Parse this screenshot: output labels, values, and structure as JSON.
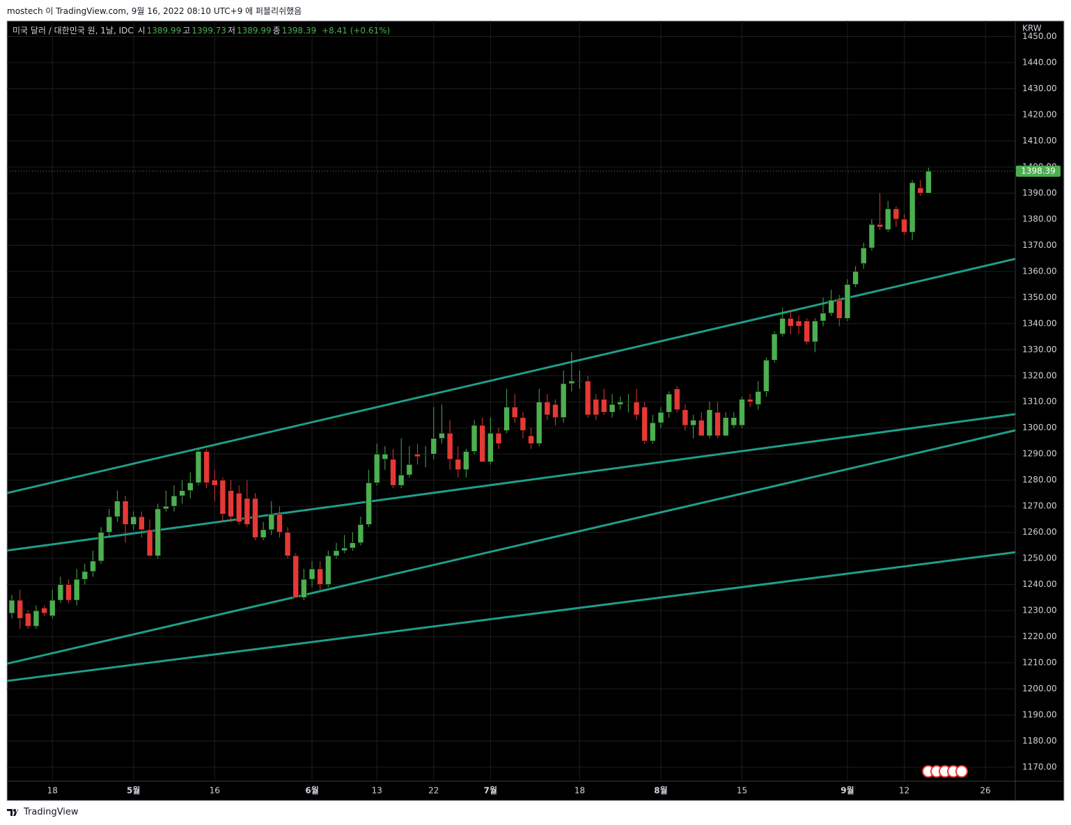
{
  "header": {
    "published": "mostech 이 TradingView.com, 9월 16, 2022 08:10 UTC+9 에 퍼블리쉬했음",
    "symbol": "미국 달러 / 대한민국 원, 1날, IDC",
    "ohlc": [
      {
        "label": "시",
        "value": "1389.99"
      },
      {
        "label": "고",
        "value": "1399.73"
      },
      {
        "label": "저",
        "value": "1389.99"
      },
      {
        "label": "종",
        "value": "1398.39"
      }
    ],
    "change": "+8.41 (+0.61%)"
  },
  "chart_data": {
    "type": "candlestick",
    "currency": "KRW",
    "up_color": "#4caf50",
    "down_color": "#e53935",
    "grid": true,
    "categories": [
      null,
      null,
      null,
      null,
      null,
      "18",
      null,
      null,
      null,
      null,
      null,
      null,
      null,
      null,
      null,
      "5월",
      null,
      null,
      null,
      null,
      null,
      null,
      null,
      null,
      null,
      "16",
      null,
      null,
      null,
      null,
      null,
      null,
      null,
      null,
      null,
      null,
      null,
      "6월",
      null,
      null,
      null,
      null,
      null,
      null,
      null,
      "13",
      null,
      null,
      null,
      null,
      null,
      null,
      "22",
      null,
      null,
      null,
      null,
      null,
      null,
      "7월",
      null,
      null,
      null,
      null,
      null,
      null,
      null,
      null,
      null,
      null,
      "18",
      null,
      null,
      null,
      null,
      null,
      null,
      null,
      null,
      null,
      "8월",
      null,
      null,
      null,
      null,
      null,
      null,
      null,
      null,
      null,
      "15",
      null,
      null,
      null,
      null,
      null,
      null,
      null,
      null,
      null,
      null,
      null,
      null,
      "9월",
      null,
      null,
      null,
      null,
      null,
      null,
      "12",
      null,
      null,
      null,
      null,
      null,
      null,
      null,
      null,
      null,
      "26",
      null,
      null,
      null
    ],
    "open": [
      1229,
      1234,
      1229,
      1224,
      1231,
      1228,
      1234,
      1240,
      1234,
      1242,
      1245,
      1249,
      1260,
      1266,
      1272,
      1263,
      1266,
      1261,
      1251,
      1269,
      1270,
      1274,
      1276,
      1279,
      1291,
      1280,
      1280,
      1276,
      1275,
      1273,
      1273,
      1258,
      1261,
      1267,
      1260,
      1251,
      1235,
      1242,
      1246,
      1240,
      1251,
      1253,
      1254,
      1256,
      1263,
      1279,
      1288,
      1288,
      1278,
      1282,
      1290,
      1290,
      1290,
      1296,
      1298,
      1288,
      1284,
      1291,
      1301,
      1287,
      1298,
      1299,
      1308,
      1304,
      1297,
      1294,
      1310,
      1309,
      1304,
      1317,
      1318,
      1318,
      1311,
      1311,
      1306,
      1309,
      1310,
      1310,
      1308,
      1295,
      1302,
      1306,
      1315,
      1307,
      1301,
      1303,
      1297,
      1306,
      1297,
      1301,
      1301,
      1311,
      1309,
      1314,
      1326,
      1336,
      1342,
      1341,
      1341,
      1333,
      1341,
      1344,
      1349,
      1342,
      1355,
      1363,
      1369,
      1378,
      1376,
      1384,
      1380,
      1375,
      1392,
      1389.99,
      null,
      null,
      null,
      null,
      null,
      null,
      null,
      null,
      null,
      null
    ],
    "high": [
      1236,
      1238,
      1230,
      1232,
      1232,
      1238,
      1243,
      1242,
      1246,
      1248,
      1253,
      1262,
      1269,
      1276,
      1274,
      1268,
      1268,
      1265,
      1271,
      1276,
      1278,
      1280,
      1283,
      1292,
      1292,
      1284,
      1281,
      1280,
      1278,
      1280,
      1275,
      1264,
      1272,
      1270,
      1262,
      1252,
      1246,
      1249,
      1249,
      1253,
      1256,
      1259,
      1260,
      1266,
      1284,
      1294,
      1293,
      1292,
      1296,
      1293,
      1294,
      1293,
      1308,
      1309,
      1303,
      1293,
      1292,
      1303,
      1304,
      1304,
      1300,
      1315,
      1313,
      1306,
      1300,
      1315,
      1313,
      1311,
      1322,
      1329,
      1322,
      1320,
      1313,
      1315,
      1313,
      1312,
      1313,
      1315,
      1310,
      1305,
      1308,
      1314,
      1316,
      1309,
      1305,
      1306,
      1310,
      1310,
      1306,
      1306,
      1312,
      1313,
      1318,
      1327,
      1337,
      1346,
      1345,
      1343,
      1342,
      1342,
      1350,
      1353,
      1351,
      1357,
      1362,
      1371,
      1380,
      1390,
      1387,
      1385,
      1382,
      1395,
      1395,
      1399.73,
      null,
      null,
      null,
      null,
      null,
      null,
      null,
      null,
      null,
      null
    ],
    "low": [
      1227,
      1223,
      1223,
      1223,
      1228,
      1227,
      1233,
      1233,
      1232,
      1240,
      1243,
      1248,
      1258,
      1264,
      1256,
      1261,
      1258,
      1251,
      1250,
      1268,
      1268,
      1271,
      1273,
      1278,
      1277,
      1272,
      1264,
      1264,
      1263,
      1262,
      1257,
      1257,
      1259,
      1258,
      1250,
      1235,
      1234,
      1239,
      1238,
      1239,
      1250,
      1252,
      1253,
      1255,
      1262,
      1278,
      1284,
      1277,
      1277,
      1281,
      1286,
      1285,
      1288,
      1294,
      1284,
      1281,
      1281,
      1290,
      1287,
      1286,
      1292,
      1298,
      1302,
      1296,
      1292,
      1293,
      1303,
      1301,
      1302,
      1314,
      1315,
      1304,
      1303,
      1305,
      1304,
      1307,
      1306,
      1303,
      1294,
      1294,
      1300,
      1304,
      1306,
      1299,
      1296,
      1297,
      1296,
      1296,
      1297,
      1300,
      1300,
      1308,
      1307,
      1312,
      1325,
      1335,
      1336,
      1336,
      1332,
      1329,
      1339,
      1343,
      1339,
      1341,
      1354,
      1361,
      1368,
      1376,
      1375,
      1377,
      1374,
      1372,
      1389,
      1389.99,
      null,
      null,
      null,
      null,
      null,
      null,
      null,
      null,
      null,
      null
    ],
    "close": [
      1234,
      1227,
      1224,
      1230,
      1229,
      1234,
      1240,
      1234,
      1242,
      1245,
      1249,
      1260,
      1266,
      1272,
      1263,
      1266,
      1261,
      1251,
      1269,
      1270,
      1274,
      1276,
      1279,
      1291,
      1279,
      1278,
      1267,
      1266,
      1264,
      1263,
      1258,
      1261,
      1267,
      1260,
      1251,
      1235,
      1242,
      1246,
      1240,
      1251,
      1253,
      1254,
      1256,
      1263,
      1279,
      1290,
      1290,
      1278,
      1282,
      1286,
      1289,
      1290,
      1296,
      1298,
      1288,
      1284,
      1291,
      1301,
      1287,
      1298,
      1294,
      1308,
      1304,
      1299,
      1294,
      1310,
      1305,
      1304,
      1317,
      1318,
      1318,
      1305,
      1305,
      1306,
      1309,
      1310,
      1310,
      1305,
      1295,
      1302,
      1306,
      1313,
      1307,
      1301,
      1303,
      1297,
      1307,
      1297,
      1304,
      1304,
      1311,
      1310,
      1314,
      1326,
      1336,
      1342,
      1339,
      1339,
      1333,
      1341,
      1344,
      1349,
      1342,
      1355,
      1360,
      1369,
      1378,
      1377,
      1384,
      1380,
      1375,
      1394,
      1390,
      1398.39,
      null,
      null,
      null,
      null,
      null,
      null,
      null,
      null,
      null,
      null
    ],
    "ylim": [
      1164.66,
      1456.0
    ],
    "yticks": [
      {
        "value": 1170,
        "label": "1170.00"
      },
      {
        "value": 1180,
        "label": "1180.00"
      },
      {
        "value": 1190,
        "label": "1190.00"
      },
      {
        "value": 1200,
        "label": "1200.00"
      },
      {
        "value": 1210,
        "label": "1210.00"
      },
      {
        "value": 1220,
        "label": "1220.00"
      },
      {
        "value": 1230,
        "label": "1230.00"
      },
      {
        "value": 1240,
        "label": "1240.00"
      },
      {
        "value": 1250,
        "label": "1250.00"
      },
      {
        "value": 1260,
        "label": "1260.00"
      },
      {
        "value": 1270,
        "label": "1270.00"
      },
      {
        "value": 1280,
        "label": "1280.00"
      },
      {
        "value": 1290,
        "label": "1290.00"
      },
      {
        "value": 1300,
        "label": "1300.00"
      },
      {
        "value": 1310,
        "label": "1310.00"
      },
      {
        "value": 1320,
        "label": "1320.00"
      },
      {
        "value": 1330,
        "label": "1330.00"
      },
      {
        "value": 1340,
        "label": "1340.00"
      },
      {
        "value": 1350,
        "label": "1350.00"
      },
      {
        "value": 1360,
        "label": "1360.00"
      },
      {
        "value": 1370,
        "label": "1370.00"
      },
      {
        "value": 1380,
        "label": "1380.00"
      },
      {
        "value": 1390,
        "label": "1390.00"
      },
      {
        "value": 1400,
        "label": "1400.00"
      },
      {
        "value": 1410,
        "label": "1410.00"
      },
      {
        "value": 1420,
        "label": "1420.00"
      },
      {
        "value": 1430,
        "label": "1430.00"
      },
      {
        "value": 1440,
        "label": "1440.00"
      },
      {
        "value": 1450,
        "label": "1450.00"
      }
    ],
    "trendlines": [
      {
        "color": "#1f9e8a",
        "start": 1275.5,
        "end": 1364.3
      },
      {
        "color": "#1f9e8a",
        "start": 1253.3,
        "end": 1305.0
      },
      {
        "color": "#1f9e8a",
        "start": 1210.1,
        "end": 1298.6
      },
      {
        "color": "#1f9e8a",
        "start": 1203.3,
        "end": 1252.1
      }
    ],
    "last_price": {
      "value": 1398.39,
      "label": "1398.39"
    }
  },
  "footer": {
    "brand": "TradingView"
  }
}
